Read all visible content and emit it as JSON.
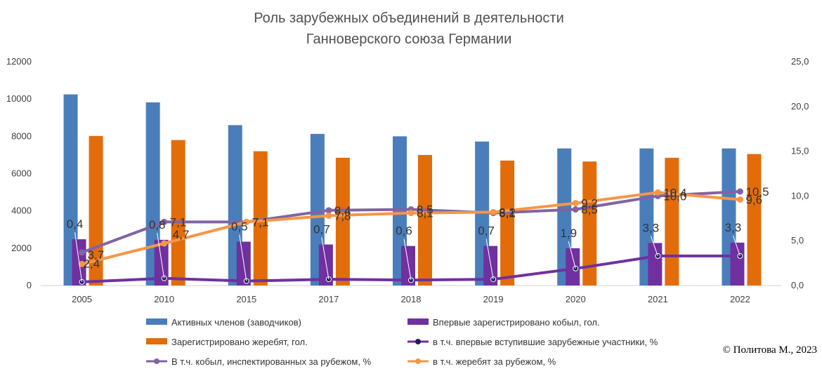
{
  "chart_data": {
    "type": "bar",
    "title": [
      "Роль зарубежных объединений в деятельности",
      "Ганноверского союза Германии"
    ],
    "categories": [
      "2005",
      "2010",
      "2015",
      "2017",
      "2018",
      "2019",
      "2020",
      "2021",
      "2022"
    ],
    "y_left": {
      "ylim": [
        0,
        12000
      ],
      "ticks": [
        "0",
        "2000",
        "4000",
        "6000",
        "8000",
        "10000",
        "12000"
      ],
      "tick_values": [
        0,
        2000,
        4000,
        6000,
        8000,
        10000,
        12000
      ]
    },
    "y_right": {
      "ylim": [
        0,
        25
      ],
      "ticks": [
        "0,0",
        "5,0",
        "10,0",
        "15,0",
        "20,0",
        "25,0"
      ],
      "tick_values": [
        0,
        5,
        10,
        15,
        20,
        25
      ]
    },
    "bars": [
      {
        "name": "Активных членов (заводчиков)",
        "color": "#4a7ebb",
        "axis": "left",
        "values": [
          10250,
          9820,
          8600,
          8130,
          8000,
          7720,
          7350,
          7350,
          7350
        ]
      },
      {
        "name": "Впервые зарегистрировано кобыл, гол.",
        "color": "#7030a0",
        "axis": "left",
        "values": [
          2480,
          2450,
          2350,
          2200,
          2120,
          2120,
          2000,
          2280,
          2300
        ]
      },
      {
        "name": "Зарегистрировано жеребят, гол.",
        "color": "#e36c0a",
        "axis": "left",
        "values": [
          8020,
          7800,
          7200,
          6850,
          7000,
          6700,
          6650,
          6850,
          7050
        ]
      }
    ],
    "lines": [
      {
        "name": "в т.ч. впервые вступившие зарубежные участники, %",
        "color": "#7030a0",
        "marker_color": "#1f1f5e",
        "axis": "right",
        "values": [
          0.4,
          0.8,
          0.5,
          0.7,
          0.6,
          0.7,
          1.9,
          3.3,
          3.3
        ],
        "labels": [
          "0,4",
          "0,8",
          "0,5",
          "0,7",
          "0,6",
          "0,7",
          "1,9",
          "3,3",
          "3,3"
        ]
      },
      {
        "name": "В т.ч. кобыл, инспектированных за рубежом, %",
        "color": "#8064a2",
        "axis": "right",
        "values": [
          3.7,
          7.1,
          7.1,
          8.4,
          8.5,
          8.1,
          8.5,
          10.0,
          10.5
        ],
        "labels": [
          "3,7",
          "7,1",
          "7,1",
          "8,4",
          "8,5",
          "8,1",
          "8,5",
          "10,0",
          "10,5"
        ]
      },
      {
        "name": "в т.ч. жеребят за рубежом, %",
        "color": "#f79646",
        "axis": "right",
        "values": [
          2.4,
          4.7,
          7.1,
          7.8,
          8.1,
          8.2,
          9.2,
          10.4,
          9.6
        ],
        "labels": [
          "2,4",
          "4,7",
          "7,1",
          "7,8",
          "8,1",
          "8,2",
          "9,2",
          "10,4",
          "9,6"
        ]
      }
    ],
    "legend_position": "bottom",
    "grid": false
  },
  "copyright": "© Политова М., 2023"
}
